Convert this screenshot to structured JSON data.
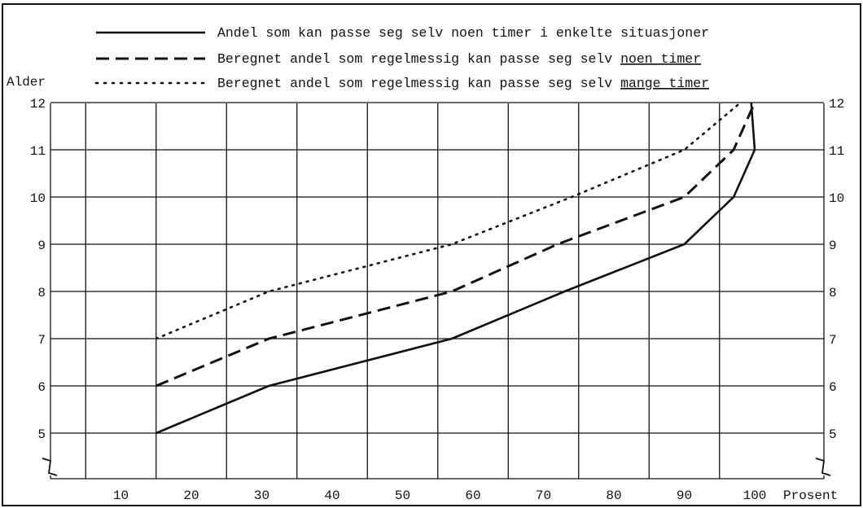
{
  "chart_data": {
    "type": "line",
    "title": "",
    "ylabel": "Alder",
    "xlabel": "Prosent",
    "xlim": [
      0,
      107
    ],
    "ylim": [
      4.3,
      12
    ],
    "x_ticks": [
      10,
      20,
      30,
      40,
      50,
      60,
      70,
      80,
      90,
      100
    ],
    "y_ticks": [
      5,
      6,
      7,
      8,
      9,
      10,
      11,
      12
    ],
    "y_axis_break": true,
    "grid": true,
    "legend_position": "top",
    "series": [
      {
        "name": "Andel som kan passe seg selv noen timer i enkelte situasjoner",
        "style": "solid",
        "points": [
          [
            15,
            5
          ],
          [
            31,
            6
          ],
          [
            57,
            7
          ],
          [
            73,
            8
          ],
          [
            90,
            9
          ],
          [
            97,
            10
          ],
          [
            100,
            11
          ],
          [
            99.5,
            12
          ]
        ]
      },
      {
        "name": "Beregnet andel som regelmessig kan passe seg selv noen timer",
        "name_plain": "Beregnet andel som regelmessig kan passe seg selv",
        "name_underlined": "noen timer",
        "style": "dashed",
        "points": [
          [
            15,
            6
          ],
          [
            31,
            7
          ],
          [
            57,
            8
          ],
          [
            72,
            9
          ],
          [
            90,
            10
          ],
          [
            97,
            11
          ],
          [
            100,
            12
          ]
        ]
      },
      {
        "name": "Beregnet andel som regelmessig kan passe seg selv mange timer",
        "name_plain": "Beregnet andel som regelmessig kan passe seg selv",
        "name_underlined": "mange timer",
        "style": "dotted",
        "points": [
          [
            15,
            7
          ],
          [
            31,
            8
          ],
          [
            57,
            9
          ],
          [
            74,
            10
          ],
          [
            90,
            11
          ],
          [
            98,
            12
          ]
        ]
      }
    ]
  }
}
